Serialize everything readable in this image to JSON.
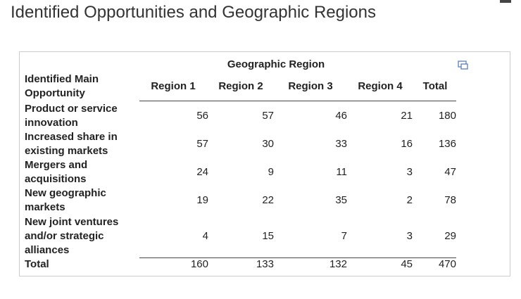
{
  "title": "Identified Opportunities and Geographic Regions",
  "table": {
    "group_header": "Geographic Region",
    "row_header": "Identified Main Opportunity",
    "columns": [
      "Region 1",
      "Region 2",
      "Region 3",
      "Region 4",
      "Total"
    ],
    "rows": [
      {
        "label": "Product or service innovation",
        "values": [
          56,
          57,
          46,
          21,
          180
        ]
      },
      {
        "label": "Increased share in existing markets",
        "values": [
          57,
          30,
          33,
          16,
          136
        ]
      },
      {
        "label": "Mergers and acquisitions",
        "values": [
          24,
          9,
          11,
          3,
          47
        ]
      },
      {
        "label": "New geographic markets",
        "values": [
          19,
          22,
          35,
          2,
          78
        ]
      },
      {
        "label": "New joint ventures and/or strategic alliances",
        "values": [
          4,
          15,
          7,
          3,
          29
        ]
      }
    ],
    "total": {
      "label": "Total",
      "values": [
        160,
        133,
        132,
        45,
        470
      ]
    }
  }
}
